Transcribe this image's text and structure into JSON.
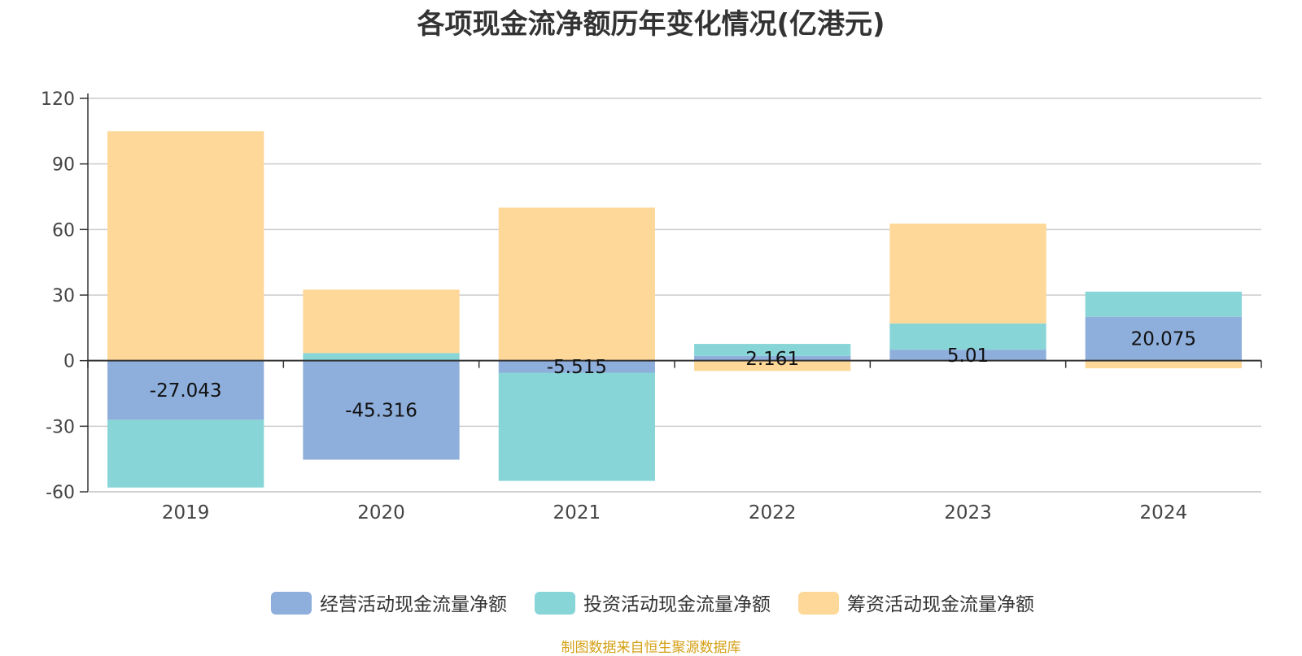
{
  "chart_data": {
    "type": "bar",
    "stacked": true,
    "title": "各项现金流净额历年变化情况(亿港元)",
    "categories": [
      "2019",
      "2020",
      "2021",
      "2022",
      "2023",
      "2024"
    ],
    "ylim": [
      -60,
      120
    ],
    "yticks": [
      -60,
      -30,
      0,
      30,
      60,
      90,
      120
    ],
    "grid": true,
    "legend_position": "bottom-center",
    "series": [
      {
        "name": "经营活动现金流量净额",
        "color": "#8eaedb",
        "values": [
          -27.043,
          -45.316,
          -5.515,
          2.161,
          5.01,
          20.075
        ],
        "labels": [
          "-27.043",
          "-45.316",
          "-5.515",
          "2.161",
          "5.01",
          "20.075"
        ]
      },
      {
        "name": "投资活动现金流量净额",
        "color": "#88d5d8",
        "values": [
          -31.0,
          3.5,
          -49.5,
          5.5,
          12.0,
          11.5
        ]
      },
      {
        "name": "筹资活动现金流量净额",
        "color": "#fed899",
        "values": [
          105.0,
          29.0,
          70.0,
          -4.7,
          45.7,
          -3.5
        ]
      }
    ]
  },
  "source": "制图数据来自恒生聚源数据库"
}
